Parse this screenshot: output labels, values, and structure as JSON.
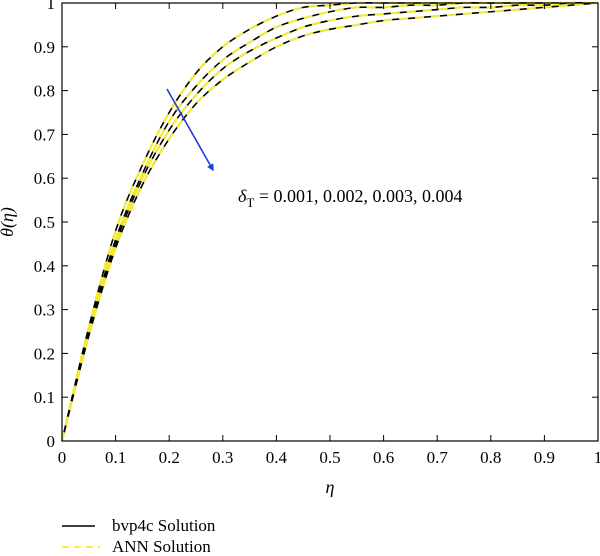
{
  "chart_data": {
    "type": "line",
    "xlabel": "η",
    "ylabel": "θ(η)",
    "xlim": [
      0,
      1
    ],
    "ylim": [
      0,
      1
    ],
    "grid": false,
    "legend_position": "bottom-left, below the axes",
    "x_ticks": [
      "0",
      "0.1",
      "0.2",
      "0.3",
      "0.4",
      "0.5",
      "0.6",
      "0.7",
      "0.8",
      "0.9",
      "1"
    ],
    "y_ticks": [
      "0",
      "0.1",
      "0.2",
      "0.3",
      "0.4",
      "0.5",
      "0.6",
      "0.7",
      "0.8",
      "0.9",
      "1"
    ],
    "x": [
      0,
      0.05,
      0.1,
      0.15,
      0.2,
      0.25,
      0.3,
      0.35,
      0.4,
      0.45,
      0.5,
      0.55,
      0.6,
      0.65,
      0.7,
      0.75,
      0.8,
      0.85,
      0.9,
      0.95,
      1.0
    ],
    "series": [
      {
        "delta_T": "0.001",
        "values": [
          0,
          0.26,
          0.48,
          0.63,
          0.75,
          0.84,
          0.9,
          0.94,
          0.97,
          0.99,
          0.995,
          1.0,
          1.0,
          1.0,
          1.0,
          1.0,
          1.0,
          1.0,
          1.0,
          1.0,
          1.0
        ]
      },
      {
        "delta_T": "0.002",
        "values": [
          0,
          0.25,
          0.46,
          0.61,
          0.73,
          0.81,
          0.87,
          0.91,
          0.945,
          0.965,
          0.98,
          0.99,
          0.99,
          0.995,
          0.995,
          1.0,
          1.0,
          1.0,
          1.0,
          1.0,
          1.0
        ]
      },
      {
        "delta_T": "0.003",
        "values": [
          0,
          0.245,
          0.45,
          0.6,
          0.71,
          0.79,
          0.85,
          0.89,
          0.92,
          0.945,
          0.96,
          0.97,
          0.975,
          0.98,
          0.985,
          0.99,
          0.99,
          0.995,
          0.995,
          1.0,
          1.0
        ]
      },
      {
        "delta_T": "0.004",
        "values": [
          0,
          0.24,
          0.44,
          0.585,
          0.69,
          0.77,
          0.825,
          0.865,
          0.9,
          0.925,
          0.94,
          0.95,
          0.96,
          0.965,
          0.97,
          0.975,
          0.98,
          0.985,
          0.99,
          0.995,
          1.0
        ]
      }
    ],
    "annotation": {
      "symbol": "δ",
      "subscript": "T",
      "text": " = 0.001, 0.002, 0.003, 0.004",
      "arrow_color": "#1f3fd6"
    },
    "legend": [
      {
        "label": "bvp4c Solution",
        "style": "solid",
        "color": "#000000"
      },
      {
        "label": "ANN Solution",
        "style": "dashed",
        "color": "#f2ea3a"
      }
    ],
    "colors": {
      "bvp4c": "#000000",
      "ann": "#f2ea3a",
      "arrow": "#1f3fd6"
    }
  }
}
